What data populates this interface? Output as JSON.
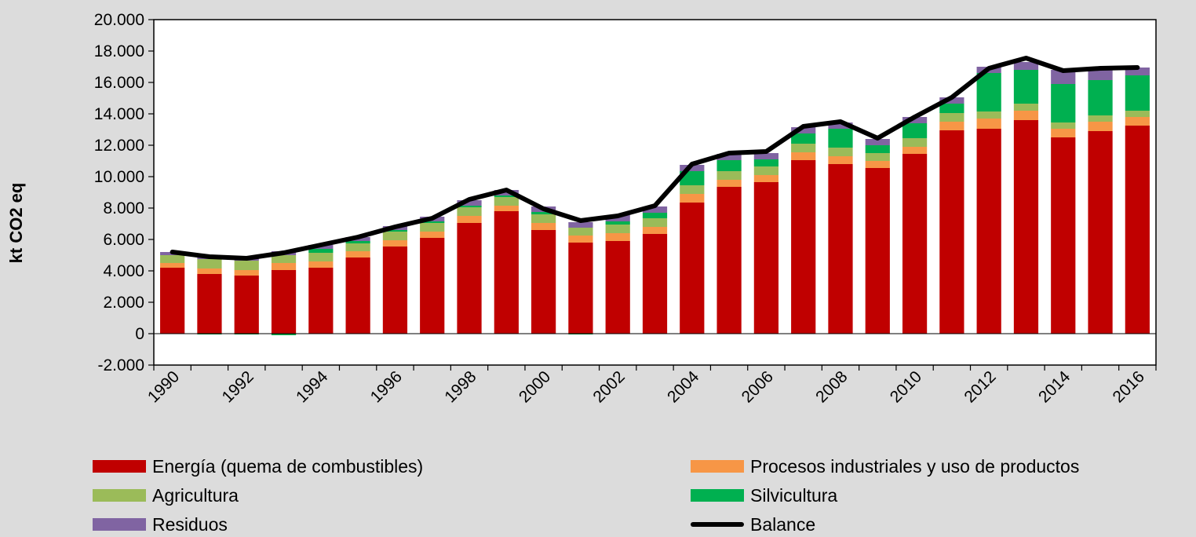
{
  "chart_data": {
    "type": "bar",
    "stacked": true,
    "ylabel": "kt CO2 eq",
    "ylim": [
      -2000,
      20000
    ],
    "yticks": [
      -2000,
      0,
      2000,
      4000,
      6000,
      8000,
      10000,
      12000,
      14000,
      16000,
      18000,
      20000
    ],
    "ytick_labels": [
      "-2.000",
      "0",
      "2.000",
      "4.000",
      "6.000",
      "8.000",
      "10.000",
      "12.000",
      "14.000",
      "16.000",
      "18.000",
      "20.000"
    ],
    "categories": [
      "1990",
      "1991",
      "1992",
      "1993",
      "1994",
      "1995",
      "1996",
      "1997",
      "1998",
      "1999",
      "2000",
      "2001",
      "2002",
      "2003",
      "2004",
      "2005",
      "2006",
      "2007",
      "2008",
      "2009",
      "2010",
      "2011",
      "2012",
      "2013",
      "2014",
      "2015",
      "2016"
    ],
    "xtick_labels": [
      "1990",
      "",
      "1992",
      "",
      "1994",
      "",
      "1996",
      "",
      "1998",
      "",
      "2000",
      "",
      "2002",
      "",
      "2004",
      "",
      "2006",
      "",
      "2008",
      "",
      "2010",
      "",
      "2012",
      "",
      "2014",
      "",
      "2016"
    ],
    "series": [
      {
        "name": "Energía (quema de combustibles)",
        "color": "#c00000",
        "values": [
          4200,
          3800,
          3700,
          4050,
          4200,
          4850,
          5550,
          6100,
          7050,
          7800,
          6600,
          5800,
          5900,
          6350,
          8350,
          9350,
          9650,
          11050,
          10800,
          10550,
          11450,
          12950,
          13050,
          13600,
          12500,
          12900,
          13250
        ]
      },
      {
        "name": "Procesos industriales y uso de productos",
        "color": "#f79646",
        "values": [
          300,
          350,
          350,
          450,
          400,
          400,
          400,
          400,
          450,
          350,
          450,
          450,
          500,
          450,
          550,
          450,
          450,
          500,
          500,
          450,
          450,
          550,
          650,
          600,
          550,
          600,
          550
        ]
      },
      {
        "name": "Agricultura",
        "color": "#9bbb59",
        "values": [
          500,
          600,
          600,
          500,
          550,
          500,
          550,
          550,
          550,
          550,
          550,
          500,
          550,
          550,
          550,
          550,
          550,
          550,
          550,
          500,
          550,
          550,
          450,
          450,
          400,
          400,
          400
        ]
      },
      {
        "name": "Silvicultura",
        "color": "#00b050",
        "values": [
          0,
          -50,
          -50,
          -100,
          250,
          150,
          100,
          100,
          100,
          100,
          150,
          -50,
          200,
          350,
          900,
          700,
          450,
          650,
          1200,
          500,
          950,
          600,
          2450,
          2150,
          2450,
          2250,
          2250
        ]
      },
      {
        "name": "Residuos",
        "color": "#8064a2",
        "values": [
          200,
          200,
          200,
          250,
          250,
          250,
          250,
          300,
          350,
          350,
          350,
          350,
          400,
          400,
          400,
          400,
          400,
          400,
          400,
          400,
          400,
          400,
          400,
          500,
          900,
          650,
          500
        ]
      },
      {
        "name": "Balance",
        "type": "line",
        "color": "#000000",
        "values": [
          5200,
          4900,
          4800,
          5150,
          5650,
          6150,
          6800,
          7350,
          8550,
          9150,
          7950,
          7200,
          7500,
          8150,
          10800,
          11500,
          11600,
          13200,
          13500,
          12450,
          13800,
          15050,
          16900,
          17550,
          16750,
          16900,
          16950
        ]
      }
    ],
    "legend": {
      "placement": "bottom",
      "columns": 2
    }
  }
}
